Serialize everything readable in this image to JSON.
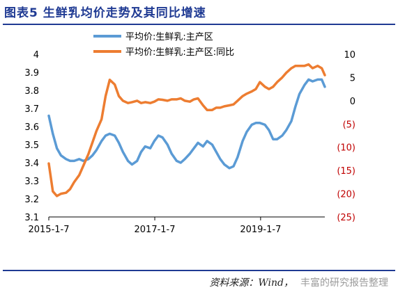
{
  "figure_title": "图表5 生鲜乳均价走势及其同比增速",
  "source_note": "资料来源：Wind，",
  "watermark": "丰富的研究报告整理",
  "colors": {
    "title": "#1f3a93",
    "price_series": "#5b9bd5",
    "yoy_series": "#ed7d31",
    "negative_tick": "#c00000"
  },
  "chart_data": {
    "type": "line",
    "title": "",
    "x_range": [
      "2015-01-07",
      "2020-03-25"
    ],
    "x_ticks": [
      "2015-1-7",
      "2017-1-7",
      "2019-1-7"
    ],
    "y_left": {
      "label": "",
      "range": [
        3.1,
        4.0
      ],
      "ticks": [
        "4",
        "3.9",
        "3.8",
        "3.7",
        "3.6",
        "3.5",
        "3.4",
        "3.3",
        "3.2",
        "3.1"
      ]
    },
    "y_right": {
      "label": "",
      "range": [
        -25,
        10
      ],
      "ticks": [
        "10",
        "5",
        "0",
        "(5)",
        "(10)",
        "(15)",
        "(20)",
        "(25)"
      ]
    },
    "grid": false,
    "legend": {
      "placement": "top-center"
    },
    "series": [
      {
        "name": "平均价:生鲜乳:主产区",
        "axis": "left",
        "points": [
          [
            "2015-01-07",
            3.66
          ],
          [
            "2015-02-04",
            3.56
          ],
          [
            "2015-03-04",
            3.48
          ],
          [
            "2015-04-01",
            3.44
          ],
          [
            "2015-05-06",
            3.42
          ],
          [
            "2015-06-03",
            3.41
          ],
          [
            "2015-07-01",
            3.41
          ],
          [
            "2015-08-05",
            3.42
          ],
          [
            "2015-09-02",
            3.41
          ],
          [
            "2015-10-07",
            3.42
          ],
          [
            "2015-11-04",
            3.44
          ],
          [
            "2015-12-02",
            3.47
          ],
          [
            "2016-01-06",
            3.52
          ],
          [
            "2016-02-03",
            3.55
          ],
          [
            "2016-03-02",
            3.56
          ],
          [
            "2016-04-06",
            3.55
          ],
          [
            "2016-05-04",
            3.51
          ],
          [
            "2016-06-01",
            3.46
          ],
          [
            "2016-07-06",
            3.41
          ],
          [
            "2016-08-03",
            3.39
          ],
          [
            "2016-09-07",
            3.41
          ],
          [
            "2016-10-05",
            3.46
          ],
          [
            "2016-11-02",
            3.49
          ],
          [
            "2016-12-07",
            3.48
          ],
          [
            "2017-01-04",
            3.52
          ],
          [
            "2017-02-01",
            3.55
          ],
          [
            "2017-03-01",
            3.54
          ],
          [
            "2017-04-05",
            3.5
          ],
          [
            "2017-05-03",
            3.45
          ],
          [
            "2017-06-07",
            3.41
          ],
          [
            "2017-07-05",
            3.4
          ],
          [
            "2017-08-02",
            3.42
          ],
          [
            "2017-09-06",
            3.45
          ],
          [
            "2017-10-04",
            3.48
          ],
          [
            "2017-11-01",
            3.51
          ],
          [
            "2017-12-06",
            3.49
          ],
          [
            "2018-01-03",
            3.52
          ],
          [
            "2018-02-07",
            3.5
          ],
          [
            "2018-03-07",
            3.46
          ],
          [
            "2018-04-04",
            3.42
          ],
          [
            "2018-05-02",
            3.39
          ],
          [
            "2018-06-06",
            3.37
          ],
          [
            "2018-07-04",
            3.38
          ],
          [
            "2018-08-01",
            3.43
          ],
          [
            "2018-09-05",
            3.52
          ],
          [
            "2018-10-03",
            3.57
          ],
          [
            "2018-11-07",
            3.61
          ],
          [
            "2018-12-05",
            3.62
          ],
          [
            "2019-01-02",
            3.62
          ],
          [
            "2019-02-06",
            3.61
          ],
          [
            "2019-03-06",
            3.58
          ],
          [
            "2019-04-03",
            3.53
          ],
          [
            "2019-05-01",
            3.53
          ],
          [
            "2019-06-05",
            3.55
          ],
          [
            "2019-07-03",
            3.58
          ],
          [
            "2019-08-07",
            3.63
          ],
          [
            "2019-09-04",
            3.71
          ],
          [
            "2019-10-02",
            3.78
          ],
          [
            "2019-11-06",
            3.83
          ],
          [
            "2019-12-04",
            3.86
          ],
          [
            "2020-01-01",
            3.85
          ],
          [
            "2020-02-05",
            3.86
          ],
          [
            "2020-03-04",
            3.86
          ],
          [
            "2020-03-25",
            3.82
          ]
        ]
      },
      {
        "name": "平均价:生鲜乳:主产区:同比",
        "axis": "right",
        "points": [
          [
            "2015-01-07",
            -13.5
          ],
          [
            "2015-02-04",
            -19.5
          ],
          [
            "2015-03-04",
            -20.5
          ],
          [
            "2015-04-01",
            -20.0
          ],
          [
            "2015-05-06",
            -19.8
          ],
          [
            "2015-06-03",
            -19.0
          ],
          [
            "2015-07-01",
            -17.5
          ],
          [
            "2015-08-05",
            -16.0
          ],
          [
            "2015-09-02",
            -14.0
          ],
          [
            "2015-10-07",
            -11.5
          ],
          [
            "2015-11-04",
            -9.0
          ],
          [
            "2015-12-02",
            -6.5
          ],
          [
            "2016-01-06",
            -4.0
          ],
          [
            "2016-02-03",
            1.0
          ],
          [
            "2016-03-02",
            4.5
          ],
          [
            "2016-04-06",
            3.5
          ],
          [
            "2016-05-04",
            1.0
          ],
          [
            "2016-06-01",
            0.0
          ],
          [
            "2016-07-06",
            -0.5
          ],
          [
            "2016-08-03",
            -0.3
          ],
          [
            "2016-09-07",
            0.0
          ],
          [
            "2016-10-05",
            -0.5
          ],
          [
            "2016-11-02",
            -0.3
          ],
          [
            "2016-12-07",
            -0.5
          ],
          [
            "2017-01-04",
            -0.2
          ],
          [
            "2017-02-01",
            0.3
          ],
          [
            "2017-03-01",
            0.2
          ],
          [
            "2017-04-05",
            0.0
          ],
          [
            "2017-05-03",
            0.3
          ],
          [
            "2017-06-07",
            0.3
          ],
          [
            "2017-07-05",
            0.5
          ],
          [
            "2017-08-02",
            0.0
          ],
          [
            "2017-09-06",
            -0.2
          ],
          [
            "2017-10-04",
            0.3
          ],
          [
            "2017-11-01",
            0.5
          ],
          [
            "2017-12-06",
            -1.0
          ],
          [
            "2018-01-03",
            -2.0
          ],
          [
            "2018-02-07",
            -2.0
          ],
          [
            "2018-03-07",
            -1.5
          ],
          [
            "2018-04-04",
            -1.5
          ],
          [
            "2018-05-02",
            -1.2
          ],
          [
            "2018-06-06",
            -1.0
          ],
          [
            "2018-07-04",
            -0.8
          ],
          [
            "2018-08-01",
            0.0
          ],
          [
            "2018-09-05",
            1.0
          ],
          [
            "2018-10-03",
            1.5
          ],
          [
            "2018-11-07",
            2.0
          ],
          [
            "2018-12-05",
            2.5
          ],
          [
            "2019-01-02",
            4.0
          ],
          [
            "2019-02-06",
            3.0
          ],
          [
            "2019-03-06",
            2.5
          ],
          [
            "2019-04-03",
            3.0
          ],
          [
            "2019-05-01",
            4.0
          ],
          [
            "2019-06-05",
            5.0
          ],
          [
            "2019-07-03",
            6.0
          ],
          [
            "2019-08-07",
            7.0
          ],
          [
            "2019-09-04",
            7.5
          ],
          [
            "2019-10-02",
            7.5
          ],
          [
            "2019-11-06",
            7.5
          ],
          [
            "2019-12-04",
            7.8
          ],
          [
            "2020-01-01",
            7.0
          ],
          [
            "2020-02-05",
            7.5
          ],
          [
            "2020-03-04",
            7.0
          ],
          [
            "2020-03-25",
            5.5
          ]
        ]
      }
    ]
  }
}
